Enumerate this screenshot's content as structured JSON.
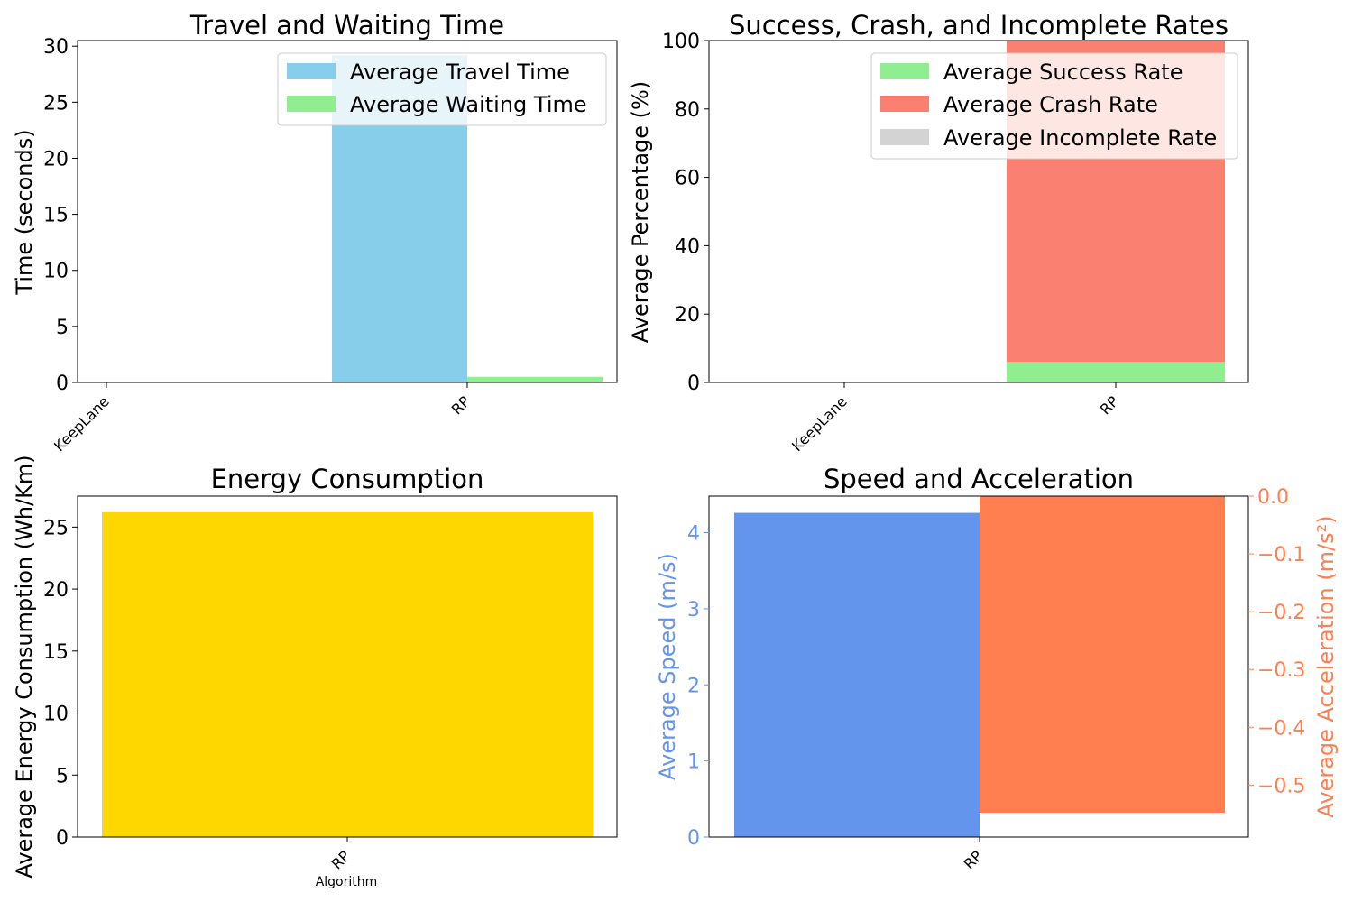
{
  "chart_data": [
    {
      "type": "bar",
      "title": "Travel and Waiting Time",
      "ylabel": "Time (seconds)",
      "xlabel": "",
      "categories": [
        "KeepLane",
        "RP"
      ],
      "ylim": [
        0,
        30.5
      ],
      "yticks": [
        0,
        5,
        10,
        15,
        20,
        25,
        30
      ],
      "series": [
        {
          "name": "Average Travel Time",
          "values": [
            0,
            29.2
          ],
          "color": "#87CEEB"
        },
        {
          "name": "Average Waiting Time",
          "values": [
            0,
            0.5
          ],
          "color": "#90EE90"
        }
      ],
      "legend": "top-right",
      "grid": false
    },
    {
      "type": "bar",
      "stacked": true,
      "title": "Success, Crash, and Incomplete Rates",
      "ylabel": "Average Percentage (%)",
      "xlabel": "",
      "categories": [
        "KeepLane",
        "RP"
      ],
      "ylim": [
        0,
        100
      ],
      "yticks": [
        0,
        20,
        40,
        60,
        80,
        100
      ],
      "series": [
        {
          "name": "Average Success Rate",
          "values": [
            0,
            6
          ],
          "color": "#90EE90"
        },
        {
          "name": "Average Crash Rate",
          "values": [
            0,
            94
          ],
          "color": "#FA8072"
        },
        {
          "name": "Average Incomplete Rate",
          "values": [
            0,
            0
          ],
          "color": "#D3D3D3"
        }
      ],
      "legend": "top-right",
      "grid": false
    },
    {
      "type": "bar",
      "title": "Energy Consumption",
      "ylabel": "Average Energy Consumption (Wh/Km)",
      "xlabel": "Algorithm",
      "categories": [
        "RP"
      ],
      "ylim": [
        0,
        27.5
      ],
      "yticks": [
        0,
        5,
        10,
        15,
        20,
        25
      ],
      "series": [
        {
          "values": [
            26.2
          ],
          "color": "#FFD700"
        }
      ],
      "grid": false
    },
    {
      "type": "bar",
      "title": "Speed and Acceleration",
      "categories": [
        "RP"
      ],
      "left_axis": {
        "ylabel": "Average Speed (m/s)",
        "ylim": [
          0,
          4.48
        ],
        "yticks": [
          0,
          1,
          2,
          3,
          4
        ],
        "color": "#6495ED"
      },
      "right_axis": {
        "ylabel": "Average Acceleration (m/s²)",
        "ylim": [
          -0.59,
          0
        ],
        "yticks": [
          0.0,
          -0.1,
          -0.2,
          -0.3,
          -0.4,
          -0.5
        ],
        "yticklabels": [
          "0.0",
          "−0.1",
          "−0.2",
          "−0.3",
          "−0.4",
          "−0.5"
        ],
        "color": "#FF7F50"
      },
      "series": [
        {
          "values": [
            4.26
          ],
          "axis": "left",
          "color": "#6495ED"
        },
        {
          "values": [
            -0.548
          ],
          "axis": "right",
          "color": "#FF7F50"
        }
      ],
      "grid": false
    }
  ]
}
